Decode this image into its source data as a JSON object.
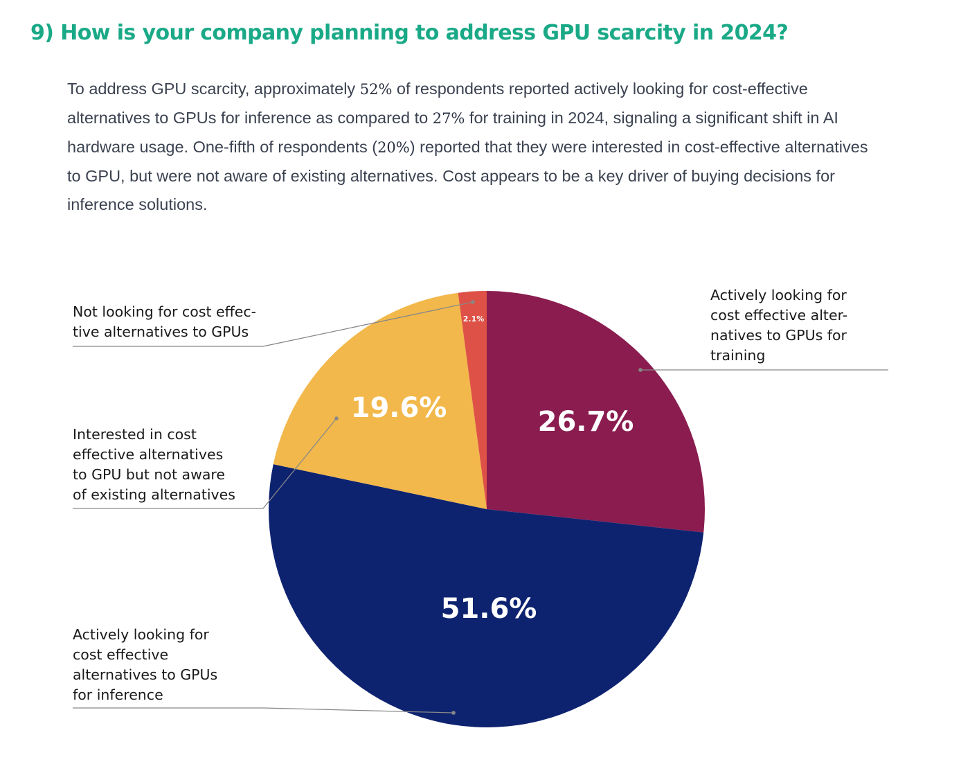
{
  "header": {
    "title": "9) How is your company planning to address GPU scarcity in 2024?"
  },
  "paragraph": {
    "parts": [
      {
        "text": "To address GPU scarcity, approximately ",
        "num": false
      },
      {
        "text": "52%",
        "num": true
      },
      {
        "text": " of respondents reported actively looking for cost-effective alternatives to GPUs for inference as compared to ",
        "num": false
      },
      {
        "text": "27%",
        "num": true
      },
      {
        "text": " for training in 2024, signaling a significant shift in AI hardware usage. One-fifth of respondents (",
        "num": false
      },
      {
        "text": "20%",
        "num": true
      },
      {
        "text": ") reported that they were interested in cost-effective alternatives to GPU, but were not aware of existing alternatives. Cost appears to be a key driver of buying decisions for inference solutions.",
        "num": false
      }
    ]
  },
  "chart_data": {
    "type": "pie",
    "title": "",
    "start": "top",
    "direction": "clockwise",
    "slices": [
      {
        "label": "Actively looking for cost effective alternatives to GPUs for training",
        "label_lines": [
          "Actively looking for",
          "cost effective alter-",
          "natives to GPUs for",
          "training"
        ],
        "value": 26.7,
        "display": "26.7%",
        "color": "#8a1c4f",
        "label_side": "right"
      },
      {
        "label": "Actively looking for cost effective alternatives to GPUs for inference",
        "label_lines": [
          "Actively looking for",
          "cost effective",
          "alternatives to GPUs",
          "for inference"
        ],
        "value": 51.6,
        "display": "51.6%",
        "color": "#0e2370",
        "label_side": "left"
      },
      {
        "label": "Interested in cost effective alternatives to GPU but not aware of existing alternatives",
        "label_lines": [
          "Interested in cost",
          "effective alternatives",
          "to GPU but not aware",
          "of existing alternatives"
        ],
        "value": 19.6,
        "display": "19.6%",
        "color": "#f2b84b",
        "label_side": "left"
      },
      {
        "label": "Not looking for cost effective alternatives to GPUs",
        "label_lines": [
          "Not looking for cost effec-",
          "tive alternatives to GPUs"
        ],
        "value": 2.1,
        "display": "2.1%",
        "color": "#de5146",
        "label_side": "left"
      }
    ],
    "leader_line_color": "#888888"
  }
}
